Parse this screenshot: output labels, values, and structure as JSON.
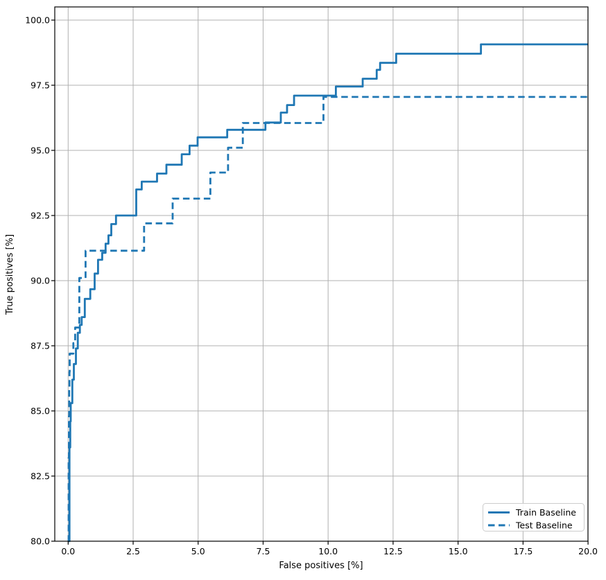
{
  "chart_data": {
    "type": "line",
    "subtype": "step-roc-curve",
    "title": "",
    "xlabel": "False positives [%]",
    "ylabel": "True positives [%]",
    "xlim": [
      -0.52,
      20
    ],
    "ylim": [
      80,
      100.5
    ],
    "grid": true,
    "legend_position": "lower right",
    "colors": {
      "line": "#1f77b4",
      "grid": "#b0b0b0",
      "spine": "#000000",
      "legend_border": "#cccccc",
      "background": "#ffffff"
    },
    "x_ticks": {
      "values": [
        0,
        2.5,
        5,
        7.5,
        10,
        12.5,
        15,
        17.5,
        20
      ],
      "labels": [
        "0.0",
        "2.5",
        "5.0",
        "7.5",
        "10.0",
        "12.5",
        "15.0",
        "17.5",
        "20.0"
      ]
    },
    "y_ticks": {
      "values": [
        80,
        82.5,
        85,
        87.5,
        90,
        92.5,
        95,
        97.5,
        100
      ],
      "labels": [
        "80.0",
        "82.5",
        "85.0",
        "87.5",
        "90.0",
        "92.5",
        "95.0",
        "97.5",
        "100.0"
      ]
    },
    "series": [
      {
        "name": "Train Baseline",
        "style": "solid",
        "color": "#1f77b4",
        "step_mode": "post",
        "points": [
          [
            0.0,
            80.0
          ],
          [
            0.05,
            83.6
          ],
          [
            0.08,
            84.6
          ],
          [
            0.1,
            85.3
          ],
          [
            0.16,
            86.2
          ],
          [
            0.22,
            86.8
          ],
          [
            0.3,
            87.4
          ],
          [
            0.37,
            88.0
          ],
          [
            0.45,
            88.3
          ],
          [
            0.52,
            88.6
          ],
          [
            0.64,
            89.3
          ],
          [
            0.85,
            89.67
          ],
          [
            1.02,
            90.27
          ],
          [
            1.15,
            90.8
          ],
          [
            1.31,
            91.07
          ],
          [
            1.44,
            91.42
          ],
          [
            1.55,
            91.74
          ],
          [
            1.66,
            92.17
          ],
          [
            1.84,
            92.5
          ],
          [
            2.62,
            93.5
          ],
          [
            2.83,
            93.8
          ],
          [
            3.42,
            94.11
          ],
          [
            3.78,
            94.45
          ],
          [
            4.37,
            94.85
          ],
          [
            4.67,
            95.18
          ],
          [
            4.98,
            95.5
          ],
          [
            6.12,
            95.79
          ],
          [
            7.59,
            96.07
          ],
          [
            8.18,
            96.45
          ],
          [
            8.42,
            96.74
          ],
          [
            8.69,
            97.1
          ],
          [
            10.3,
            97.45
          ],
          [
            11.33,
            97.75
          ],
          [
            11.87,
            98.09
          ],
          [
            12.0,
            98.36
          ],
          [
            12.62,
            98.71
          ],
          [
            15.88,
            99.07
          ],
          [
            20.0,
            99.07
          ]
        ]
      },
      {
        "name": "Test Baseline",
        "style": "dashed",
        "color": "#1f77b4",
        "step_mode": "post",
        "points": [
          [
            0.0,
            80.0
          ],
          [
            0.02,
            83.2
          ],
          [
            0.03,
            84.8
          ],
          [
            0.04,
            85.8
          ],
          [
            0.05,
            86.5
          ],
          [
            0.06,
            87.2
          ],
          [
            0.2,
            87.6
          ],
          [
            0.27,
            88.2
          ],
          [
            0.43,
            90.1
          ],
          [
            0.67,
            91.15
          ],
          [
            2.92,
            92.2
          ],
          [
            4.02,
            93.15
          ],
          [
            5.47,
            94.15
          ],
          [
            6.15,
            95.1
          ],
          [
            6.72,
            96.05
          ],
          [
            9.82,
            97.05
          ],
          [
            20.0,
            97.05
          ]
        ]
      }
    ]
  }
}
